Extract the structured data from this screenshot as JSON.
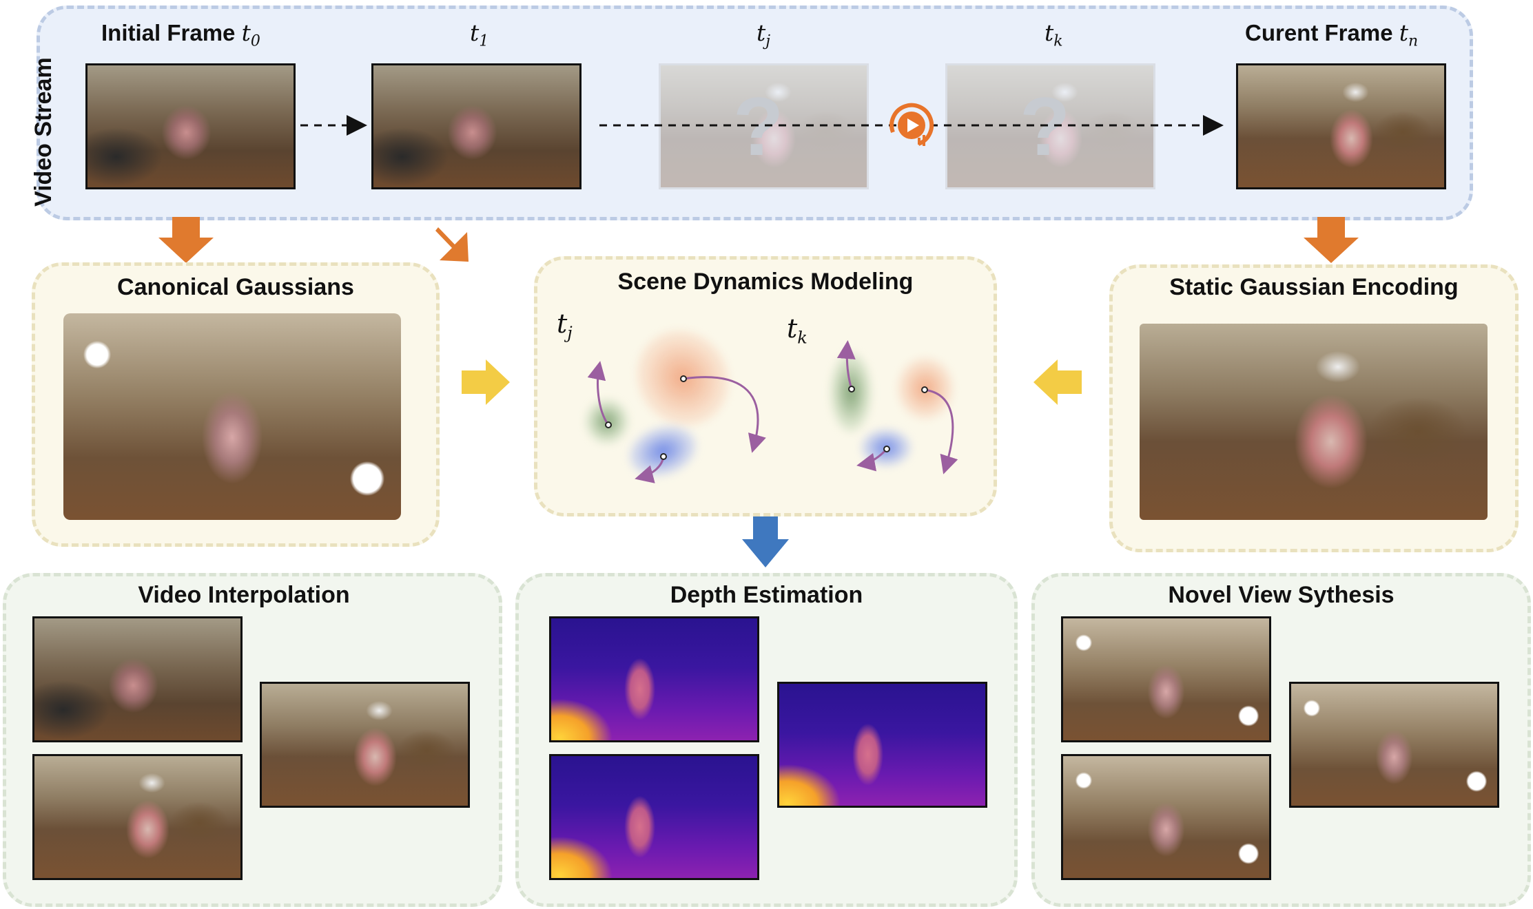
{
  "video_stream": {
    "label": "Video Stream",
    "frames": [
      {
        "label": "Initial Frame",
        "symbol": "t",
        "sub": "0"
      },
      {
        "label": "",
        "symbol": "t",
        "sub": "1"
      },
      {
        "label": "",
        "symbol": "t",
        "sub": "j"
      },
      {
        "label": "",
        "symbol": "t",
        "sub": "k"
      },
      {
        "label": "Curent Frame",
        "symbol": "t",
        "sub": "n"
      }
    ],
    "unknown_mark": "?"
  },
  "canonical": {
    "title": "Canonical Gaussians"
  },
  "dynamics": {
    "title": "Scene Dynamics Modeling",
    "tj_symbol": "t",
    "tj_sub": "j",
    "tk_symbol": "t",
    "tk_sub": "k"
  },
  "static": {
    "title": "Static Gaussian Encoding"
  },
  "apps": {
    "interp": {
      "title": "Video Interpolation"
    },
    "depth": {
      "title": "Depth Estimation"
    },
    "nvs": {
      "title": "Novel View Sythesis"
    }
  },
  "colors": {
    "orange_arrow": "#e07a2e",
    "yellow_arrow": "#f3cc45",
    "blue_arrow": "#3f78bf",
    "traj": "#9b5fa0",
    "play_icon": "#e8742a"
  }
}
